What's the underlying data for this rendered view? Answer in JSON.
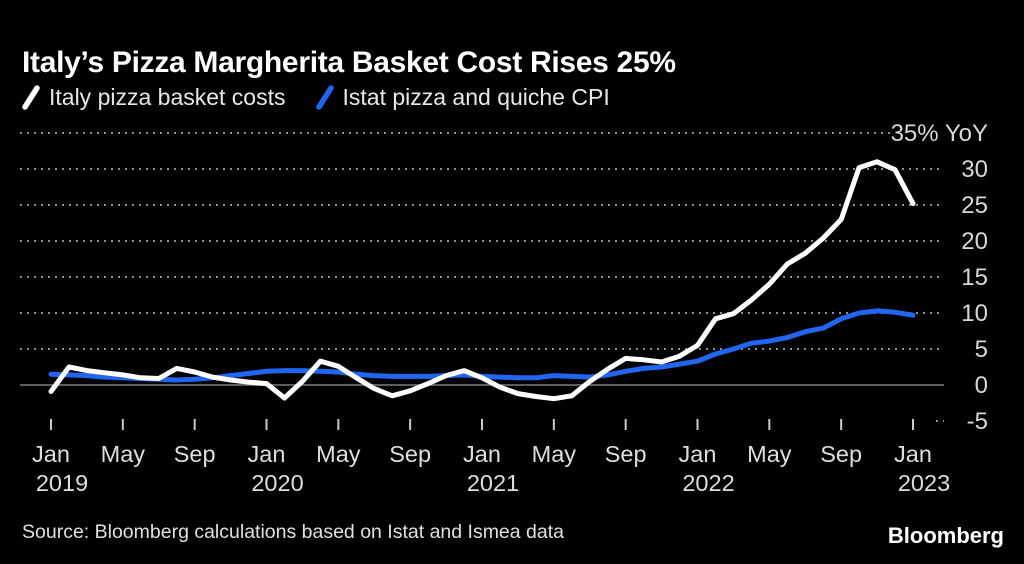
{
  "header": {
    "title": "Italy’s Pizza Margherita Basket Cost Rises 25%"
  },
  "legend": {
    "items": [
      {
        "label": "Italy pizza basket costs",
        "color": "#ffffff"
      },
      {
        "label": "Istat pizza and quiche CPI",
        "color": "#2066f0"
      }
    ]
  },
  "chart_data": {
    "type": "line",
    "title": "Italy’s Pizza Margherita Basket Cost Rises 25%",
    "unit": "% YoY",
    "ylim": [
      -5,
      35
    ],
    "grid": "dotted-horizontal",
    "legend_position": "top-left",
    "x": [
      "Jan 2019",
      "Feb 2019",
      "Mar 2019",
      "Apr 2019",
      "May 2019",
      "Jun 2019",
      "Jul 2019",
      "Aug 2019",
      "Sep 2019",
      "Oct 2019",
      "Nov 2019",
      "Dec 2019",
      "Jan 2020",
      "Feb 2020",
      "Mar 2020",
      "Apr 2020",
      "May 2020",
      "Jun 2020",
      "Jul 2020",
      "Aug 2020",
      "Sep 2020",
      "Oct 2020",
      "Nov 2020",
      "Dec 2020",
      "Jan 2021",
      "Feb 2021",
      "Mar 2021",
      "Apr 2021",
      "May 2021",
      "Jun 2021",
      "Jul 2021",
      "Aug 2021",
      "Sep 2021",
      "Oct 2021",
      "Nov 2021",
      "Dec 2021",
      "Jan 2022",
      "Feb 2022",
      "Mar 2022",
      "Apr 2022",
      "May 2022",
      "Jun 2022",
      "Jul 2022",
      "Aug 2022",
      "Sep 2022",
      "Oct 2022",
      "Nov 2022",
      "Dec 2022",
      "Jan 2023"
    ],
    "series": [
      {
        "name": "Italy pizza basket costs",
        "color": "#ffffff",
        "values": [
          -0.9,
          2.5,
          2.0,
          1.7,
          1.4,
          1.0,
          0.9,
          2.3,
          1.8,
          1.1,
          0.7,
          0.4,
          0.2,
          -1.8,
          0.5,
          3.3,
          2.6,
          1.0,
          -0.5,
          -1.5,
          -0.8,
          0.2,
          1.3,
          2.0,
          1.0,
          -0.3,
          -1.2,
          -1.6,
          -1.9,
          -1.5,
          0.5,
          2.2,
          3.7,
          3.5,
          3.2,
          4.0,
          5.5,
          9.2,
          9.9,
          11.8,
          14.0,
          16.8,
          18.3,
          20.4,
          23.0,
          30.2,
          31.0,
          29.9,
          25.2
        ]
      },
      {
        "name": "Istat pizza and quiche CPI",
        "color": "#2066f0",
        "values": [
          1.5,
          1.4,
          1.3,
          1.1,
          1.0,
          0.9,
          0.8,
          0.7,
          0.8,
          1.0,
          1.3,
          1.6,
          1.9,
          2.0,
          2.0,
          1.9,
          1.8,
          1.5,
          1.3,
          1.2,
          1.2,
          1.2,
          1.3,
          1.4,
          1.2,
          1.1,
          1.0,
          1.0,
          1.3,
          1.2,
          1.1,
          1.4,
          1.9,
          2.3,
          2.5,
          2.9,
          3.3,
          4.3,
          5.0,
          5.8,
          6.1,
          6.6,
          7.4,
          7.9,
          9.2,
          10.0,
          10.3,
          10.1,
          9.7
        ]
      }
    ],
    "yticks": [
      {
        "value": 35,
        "label": "35% YoY"
      },
      {
        "value": 30,
        "label": "30"
      },
      {
        "value": 25,
        "label": "25"
      },
      {
        "value": 20,
        "label": "20"
      },
      {
        "value": 15,
        "label": "15"
      },
      {
        "value": 10,
        "label": "10"
      },
      {
        "value": 5,
        "label": "5"
      },
      {
        "value": 0,
        "label": "0"
      },
      {
        "value": -5,
        "label": "-5"
      }
    ],
    "xticks": [
      {
        "index": 0,
        "month": "Jan",
        "year": "2019"
      },
      {
        "index": 4,
        "month": "May"
      },
      {
        "index": 8,
        "month": "Sep"
      },
      {
        "index": 12,
        "month": "Jan",
        "year": "2020"
      },
      {
        "index": 16,
        "month": "May"
      },
      {
        "index": 20,
        "month": "Sep"
      },
      {
        "index": 24,
        "month": "Jan",
        "year": "2021"
      },
      {
        "index": 28,
        "month": "May"
      },
      {
        "index": 32,
        "month": "Sep"
      },
      {
        "index": 36,
        "month": "Jan",
        "year": "2022"
      },
      {
        "index": 40,
        "month": "May"
      },
      {
        "index": 44,
        "month": "Sep"
      },
      {
        "index": 48,
        "month": "Jan",
        "year": "2023"
      }
    ]
  },
  "footer": {
    "source": "Source: Bloomberg calculations based on Istat and Ismea data",
    "logo": "Bloomberg"
  }
}
